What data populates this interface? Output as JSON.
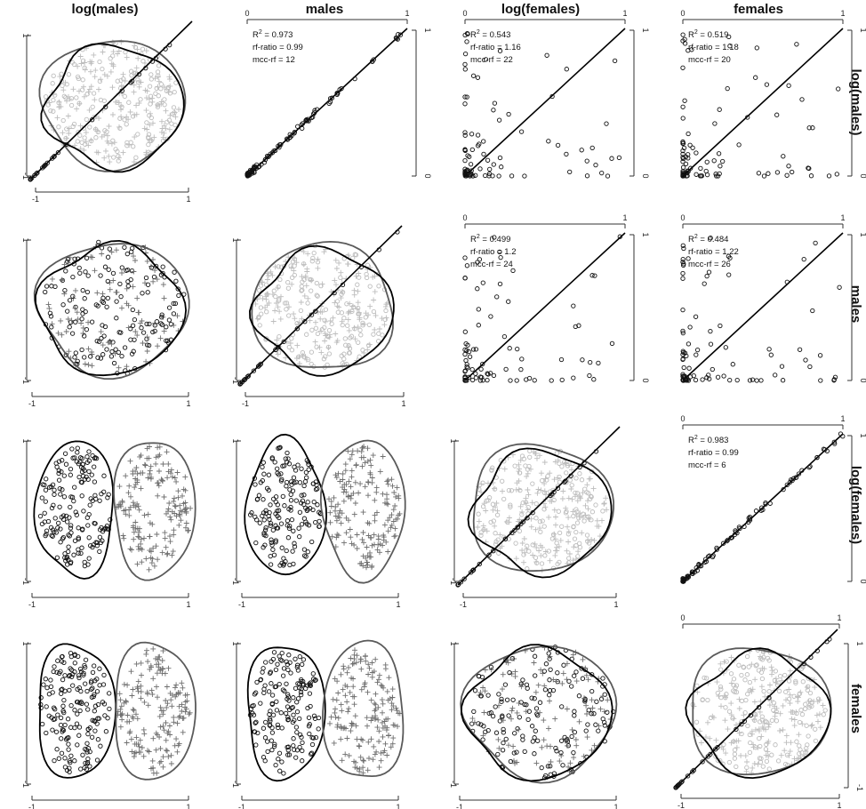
{
  "figure": {
    "variables": [
      "log(males)",
      "males",
      "log(females)",
      "females"
    ],
    "axis_tick_labels": {
      "diag_low": "-1",
      "diag_high": "1",
      "upper_low": "0",
      "upper_high": "1"
    }
  },
  "colors": {
    "light_points": "#bdbdbd",
    "dark_points": "#111111",
    "mid_points": "#6e6e6e",
    "line": "#000000",
    "contour_gray": "#5a5a5a"
  },
  "chart_data": {
    "type": "scatter",
    "layout": "scatterplot-matrix",
    "upper_panels": [
      {
        "row": 0,
        "col": 1,
        "r2_label": "R",
        "r2_sup": "2",
        "r2_value": " = 0.973",
        "rf_ratio": "rf-ratio = 0.99",
        "mcc_rf": "mcc-rf = 12"
      },
      {
        "row": 0,
        "col": 2,
        "r2_label": "R",
        "r2_sup": "2",
        "r2_value": " = 0.543",
        "rf_ratio": "rf-ratio = 1.16",
        "mcc_rf": "mcc-rf = 22"
      },
      {
        "row": 0,
        "col": 3,
        "r2_label": "R",
        "r2_sup": "2",
        "r2_value": " = 0.519",
        "rf_ratio": "rf-ratio = 1.18",
        "mcc_rf": "mcc-rf = 20"
      },
      {
        "row": 1,
        "col": 2,
        "r2_label": "R",
        "r2_sup": "2",
        "r2_value": " = 0.499",
        "rf_ratio": "rf-ratio = 1.2",
        "mcc_rf": "mcc-rf = 24"
      },
      {
        "row": 1,
        "col": 3,
        "r2_label": "R",
        "r2_sup": "2",
        "r2_value": " = 0.484",
        "rf_ratio": "rf-ratio = 1.22",
        "mcc_rf": "mcc-rf = 26"
      },
      {
        "row": 2,
        "col": 3,
        "r2_label": "R",
        "r2_sup": "2",
        "r2_value": " = 0.983",
        "rf_ratio": "rf-ratio = 0.99",
        "mcc_rf": "mcc-rf = 6"
      }
    ],
    "diagonal_panels": [
      {
        "index": 0,
        "variable": "log(males)",
        "xlim": [
          -1,
          1
        ],
        "ylim": [
          -1,
          1
        ]
      },
      {
        "index": 1,
        "variable": "males",
        "xlim": [
          -1,
          1
        ],
        "ylim": [
          -1,
          1
        ]
      },
      {
        "index": 2,
        "variable": "log(females)",
        "xlim": [
          -1,
          1
        ],
        "ylim": [
          -1,
          1
        ]
      },
      {
        "index": 3,
        "variable": "females",
        "xlim": [
          -1,
          1
        ],
        "ylim": [
          -1,
          1
        ]
      }
    ],
    "lower_panels": [
      {
        "row": 1,
        "col": 0,
        "pattern": "overlap"
      },
      {
        "row": 2,
        "col": 0,
        "pattern": "split"
      },
      {
        "row": 2,
        "col": 1,
        "pattern": "split"
      },
      {
        "row": 3,
        "col": 0,
        "pattern": "split"
      },
      {
        "row": 3,
        "col": 1,
        "pattern": "split"
      },
      {
        "row": 3,
        "col": 2,
        "pattern": "overlap"
      }
    ],
    "upper_axes": {
      "xlim": [
        0,
        1
      ],
      "ylim": [
        0,
        1
      ]
    }
  }
}
